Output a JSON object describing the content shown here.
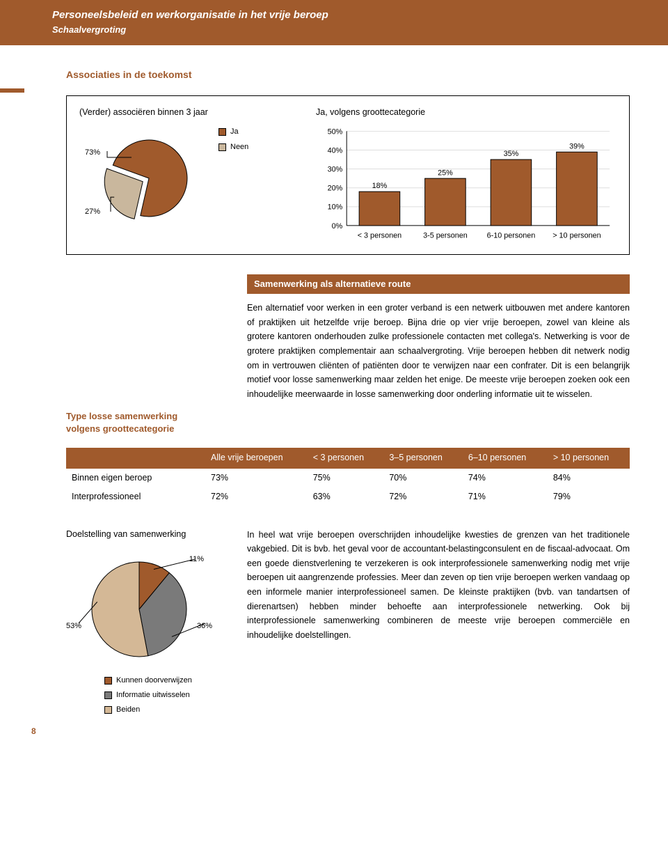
{
  "header": {
    "title": "Personeelsbeleid en werkorganisatie in het vrije beroep",
    "subtitle": "Schaalvergroting"
  },
  "section_title": "Associaties in de toekomst",
  "pie1": {
    "title": "(Verder) associëren binnen 3 jaar",
    "labels": [
      "Ja",
      "Neen"
    ],
    "values": [
      73,
      27
    ],
    "value_labels": [
      "73%",
      "27%"
    ],
    "colors": [
      "#a05a2c",
      "#c9b79d"
    ],
    "border_color": "#000000"
  },
  "bar": {
    "title": "Ja, volgens groottecategorie",
    "categories": [
      "< 3 personen",
      "3-5 personen",
      "6-10 personen",
      "> 10 personen"
    ],
    "values": [
      18,
      25,
      35,
      39
    ],
    "value_labels": [
      "18%",
      "25%",
      "35%",
      "39%"
    ],
    "ylim": [
      0,
      50
    ],
    "ytick_step": 10,
    "ytick_labels": [
      "0%",
      "10%",
      "20%",
      "30%",
      "40%",
      "50%"
    ],
    "bar_color": "#a05a2c",
    "bar_border": "#000000",
    "grid_color": "#dddddd",
    "axis_color": "#000000",
    "font_size": 11
  },
  "section2": {
    "left_heading_l1": "Type losse samenwerking",
    "left_heading_l2": "volgens groottecategorie",
    "bar_title": "Samenwerking als alternatieve route",
    "body": "Een alternatief voor werken in een groter verband is een netwerk uitbouwen met andere kantoren of praktijken uit hetzelfde vrije beroep. Bijna drie op vier vrije beroepen, zowel van kleine als grotere kantoren onderhouden zulke professionele contacten met collega's. Netwerking is voor de grotere praktijken complementair aan schaalvergroting. Vrije beroepen hebben dit netwerk nodig om in vertrouwen cliënten of patiënten door te verwijzen naar een confrater. Dit is een belangrijk motief voor losse samenwerking maar zelden het enige. De meeste vrije beroepen zoeken ook een inhoudelijke meerwaarde in losse samenwerking door onderling informatie uit te wisselen."
  },
  "table": {
    "columns": [
      "",
      "Alle vrije beroepen",
      "< 3 personen",
      "3–5 personen",
      "6–10 personen",
      "> 10 personen"
    ],
    "rows": [
      [
        "Binnen eigen beroep",
        "73%",
        "75%",
        "70%",
        "74%",
        "84%"
      ],
      [
        "Interprofessioneel",
        "72%",
        "63%",
        "72%",
        "71%",
        "79%"
      ]
    ]
  },
  "pie2": {
    "title": "Doelstelling van samenwerking",
    "labels": [
      "Kunnen doorverwijzen",
      "Informatie uitwisselen",
      "Beiden"
    ],
    "values": [
      11,
      36,
      53
    ],
    "value_labels": [
      "11%",
      "36%",
      "53%"
    ],
    "colors": [
      "#a05a2c",
      "#7a7a7a",
      "#d4b896"
    ],
    "border_color": "#000000"
  },
  "body2": "In heel wat vrije beroepen overschrijden inhoudelijke kwesties de grenzen van het traditionele vakgebied. Dit is bvb. het geval voor de accountant-belastingconsulent en de fiscaal-advocaat. Om een goede dienstverlening te verzekeren is ook interprofessionele samenwerking nodig met vrije beroepen uit aangrenzende professies. Meer dan zeven op tien vrije beroepen werken vandaag op een informele manier interprofessioneel samen. De kleinste praktijken (bvb. van tandartsen of dierenartsen) hebben minder behoefte aan interprofessionele netwerking. Ook bij interprofessionele samenwerking combineren de meeste vrije beroepen commerciële en inhoudelijke doelstellingen.",
  "page_number": "8"
}
